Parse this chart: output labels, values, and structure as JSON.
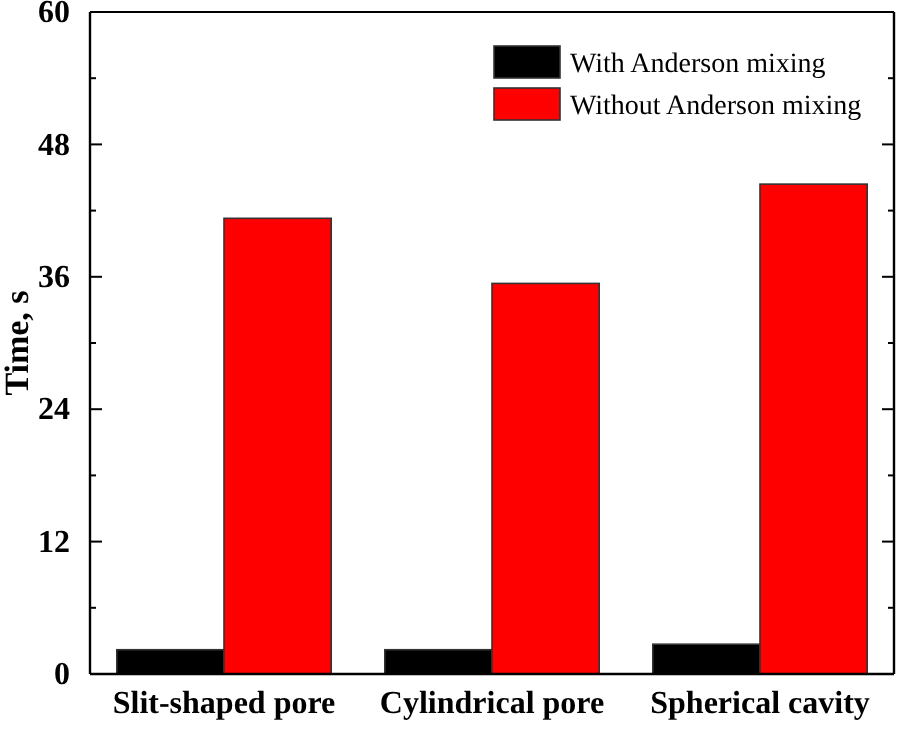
{
  "chart_data": {
    "type": "bar",
    "ylabel": "Time, s",
    "categories": [
      "Slit-shaped pore",
      "Cylindrical pore",
      "Spherical cavity"
    ],
    "series": [
      {
        "name": "With Anderson mixing",
        "color": "#000000",
        "values": [
          2.2,
          2.2,
          2.7
        ]
      },
      {
        "name": "Without Anderson mixing",
        "color": "#ff0000",
        "values": [
          41.3,
          35.4,
          44.4
        ]
      }
    ],
    "ylim": [
      0,
      60
    ],
    "yticks": [
      0,
      {
        "value": 6,
        "label": null
      },
      12,
      {
        "value": 18,
        "label": null
      },
      24,
      {
        "value": 30,
        "label": null
      },
      36,
      {
        "value": 42,
        "label": null
      },
      48,
      {
        "value": 54,
        "label": null
      },
      60
    ],
    "legend": "top right",
    "grid": false
  }
}
